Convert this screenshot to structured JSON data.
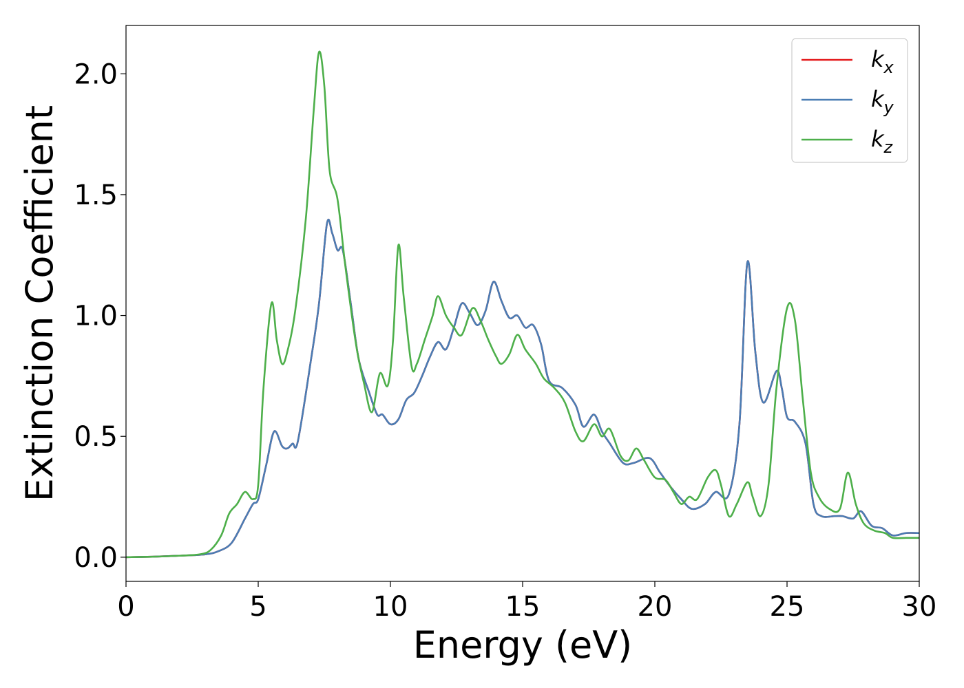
{
  "chart_data": {
    "type": "line",
    "xlabel": "Energy (eV)",
    "ylabel": "Extinction Coefficient",
    "xlim": [
      0,
      30
    ],
    "ylim": [
      -0.1,
      2.2
    ],
    "xticks": [
      "0",
      "5",
      "10",
      "15",
      "20",
      "25",
      "30"
    ],
    "yticks": [
      "0.0",
      "0.5",
      "1.0",
      "1.5",
      "2.0"
    ],
    "grid": false,
    "legend_position": "top-right",
    "series": [
      {
        "name": "k",
        "subscript": "x",
        "color": "#e41a1c",
        "points": [
          [
            0,
            0
          ],
          [
            1,
            0.002
          ],
          [
            2,
            0.006
          ],
          [
            3,
            0.012
          ],
          [
            3.5,
            0.025
          ],
          [
            4,
            0.06
          ],
          [
            4.5,
            0.16
          ],
          [
            4.8,
            0.22
          ],
          [
            5.0,
            0.24
          ],
          [
            5.3,
            0.38
          ],
          [
            5.6,
            0.52
          ],
          [
            5.9,
            0.46
          ],
          [
            6.1,
            0.45
          ],
          [
            6.3,
            0.47
          ],
          [
            6.5,
            0.48
          ],
          [
            7.0,
            0.82
          ],
          [
            7.3,
            1.05
          ],
          [
            7.6,
            1.38
          ],
          [
            7.8,
            1.34
          ],
          [
            8.0,
            1.27
          ],
          [
            8.2,
            1.27
          ],
          [
            8.5,
            1.05
          ],
          [
            8.8,
            0.82
          ],
          [
            9.2,
            0.68
          ],
          [
            9.5,
            0.59
          ],
          [
            9.7,
            0.59
          ],
          [
            10.0,
            0.55
          ],
          [
            10.3,
            0.57
          ],
          [
            10.6,
            0.65
          ],
          [
            10.9,
            0.68
          ],
          [
            11.2,
            0.75
          ],
          [
            11.5,
            0.83
          ],
          [
            11.8,
            0.89
          ],
          [
            12.1,
            0.86
          ],
          [
            12.4,
            0.95
          ],
          [
            12.7,
            1.05
          ],
          [
            13.0,
            1.01
          ],
          [
            13.3,
            0.96
          ],
          [
            13.6,
            1.02
          ],
          [
            13.9,
            1.14
          ],
          [
            14.2,
            1.06
          ],
          [
            14.5,
            0.99
          ],
          [
            14.8,
            1.0
          ],
          [
            15.1,
            0.95
          ],
          [
            15.4,
            0.96
          ],
          [
            15.7,
            0.88
          ],
          [
            16.0,
            0.73
          ],
          [
            16.5,
            0.7
          ],
          [
            17.0,
            0.63
          ],
          [
            17.3,
            0.54
          ],
          [
            17.7,
            0.59
          ],
          [
            18.0,
            0.52
          ],
          [
            18.3,
            0.47
          ],
          [
            18.8,
            0.39
          ],
          [
            19.2,
            0.39
          ],
          [
            19.8,
            0.41
          ],
          [
            20.2,
            0.35
          ],
          [
            20.6,
            0.29
          ],
          [
            21.0,
            0.24
          ],
          [
            21.4,
            0.2
          ],
          [
            21.9,
            0.22
          ],
          [
            22.3,
            0.27
          ],
          [
            22.8,
            0.26
          ],
          [
            23.2,
            0.55
          ],
          [
            23.5,
            1.22
          ],
          [
            23.8,
            0.85
          ],
          [
            24.1,
            0.64
          ],
          [
            24.6,
            0.77
          ],
          [
            24.8,
            0.7
          ],
          [
            25.0,
            0.58
          ],
          [
            25.3,
            0.56
          ],
          [
            25.7,
            0.47
          ],
          [
            26.0,
            0.22
          ],
          [
            26.3,
            0.17
          ],
          [
            26.8,
            0.17
          ],
          [
            27.1,
            0.17
          ],
          [
            27.5,
            0.16
          ],
          [
            27.8,
            0.19
          ],
          [
            28.2,
            0.13
          ],
          [
            28.6,
            0.12
          ],
          [
            29.0,
            0.09
          ],
          [
            29.5,
            0.1
          ],
          [
            30,
            0.1
          ]
        ]
      },
      {
        "name": "k",
        "subscript": "y",
        "color": "#4a7db4",
        "points": [
          [
            0,
            0
          ],
          [
            1,
            0.002
          ],
          [
            2,
            0.006
          ],
          [
            3,
            0.012
          ],
          [
            3.5,
            0.025
          ],
          [
            4,
            0.06
          ],
          [
            4.5,
            0.16
          ],
          [
            4.8,
            0.22
          ],
          [
            5.0,
            0.24
          ],
          [
            5.3,
            0.38
          ],
          [
            5.6,
            0.52
          ],
          [
            5.9,
            0.46
          ],
          [
            6.1,
            0.45
          ],
          [
            6.3,
            0.47
          ],
          [
            6.5,
            0.48
          ],
          [
            7.0,
            0.82
          ],
          [
            7.3,
            1.05
          ],
          [
            7.6,
            1.38
          ],
          [
            7.8,
            1.34
          ],
          [
            8.0,
            1.27
          ],
          [
            8.2,
            1.27
          ],
          [
            8.5,
            1.05
          ],
          [
            8.8,
            0.82
          ],
          [
            9.2,
            0.68
          ],
          [
            9.5,
            0.59
          ],
          [
            9.7,
            0.59
          ],
          [
            10.0,
            0.55
          ],
          [
            10.3,
            0.57
          ],
          [
            10.6,
            0.65
          ],
          [
            10.9,
            0.68
          ],
          [
            11.2,
            0.75
          ],
          [
            11.5,
            0.83
          ],
          [
            11.8,
            0.89
          ],
          [
            12.1,
            0.86
          ],
          [
            12.4,
            0.95
          ],
          [
            12.7,
            1.05
          ],
          [
            13.0,
            1.01
          ],
          [
            13.3,
            0.96
          ],
          [
            13.6,
            1.02
          ],
          [
            13.9,
            1.14
          ],
          [
            14.2,
            1.06
          ],
          [
            14.5,
            0.99
          ],
          [
            14.8,
            1.0
          ],
          [
            15.1,
            0.95
          ],
          [
            15.4,
            0.96
          ],
          [
            15.7,
            0.88
          ],
          [
            16.0,
            0.73
          ],
          [
            16.5,
            0.7
          ],
          [
            17.0,
            0.63
          ],
          [
            17.3,
            0.54
          ],
          [
            17.7,
            0.59
          ],
          [
            18.0,
            0.52
          ],
          [
            18.3,
            0.47
          ],
          [
            18.8,
            0.39
          ],
          [
            19.2,
            0.39
          ],
          [
            19.8,
            0.41
          ],
          [
            20.2,
            0.35
          ],
          [
            20.6,
            0.29
          ],
          [
            21.0,
            0.24
          ],
          [
            21.4,
            0.2
          ],
          [
            21.9,
            0.22
          ],
          [
            22.3,
            0.27
          ],
          [
            22.8,
            0.26
          ],
          [
            23.2,
            0.55
          ],
          [
            23.5,
            1.22
          ],
          [
            23.8,
            0.85
          ],
          [
            24.1,
            0.64
          ],
          [
            24.6,
            0.77
          ],
          [
            24.8,
            0.7
          ],
          [
            25.0,
            0.58
          ],
          [
            25.3,
            0.56
          ],
          [
            25.7,
            0.47
          ],
          [
            26.0,
            0.22
          ],
          [
            26.3,
            0.17
          ],
          [
            26.8,
            0.17
          ],
          [
            27.1,
            0.17
          ],
          [
            27.5,
            0.16
          ],
          [
            27.8,
            0.19
          ],
          [
            28.2,
            0.13
          ],
          [
            28.6,
            0.12
          ],
          [
            29.0,
            0.09
          ],
          [
            29.5,
            0.1
          ],
          [
            30,
            0.1
          ]
        ]
      },
      {
        "name": "k",
        "subscript": "z",
        "color": "#4daf4a",
        "points": [
          [
            0,
            0
          ],
          [
            1,
            0.002
          ],
          [
            2,
            0.006
          ],
          [
            2.8,
            0.012
          ],
          [
            3.2,
            0.03
          ],
          [
            3.6,
            0.09
          ],
          [
            3.9,
            0.18
          ],
          [
            4.2,
            0.22
          ],
          [
            4.5,
            0.27
          ],
          [
            4.8,
            0.24
          ],
          [
            5.0,
            0.3
          ],
          [
            5.2,
            0.7
          ],
          [
            5.5,
            1.05
          ],
          [
            5.7,
            0.9
          ],
          [
            5.9,
            0.8
          ],
          [
            6.1,
            0.85
          ],
          [
            6.4,
            1.02
          ],
          [
            6.8,
            1.4
          ],
          [
            7.1,
            1.85
          ],
          [
            7.3,
            2.09
          ],
          [
            7.5,
            1.95
          ],
          [
            7.7,
            1.6
          ],
          [
            8.0,
            1.48
          ],
          [
            8.3,
            1.2
          ],
          [
            8.7,
            0.88
          ],
          [
            9.0,
            0.72
          ],
          [
            9.3,
            0.6
          ],
          [
            9.6,
            0.76
          ],
          [
            9.9,
            0.71
          ],
          [
            10.1,
            0.9
          ],
          [
            10.3,
            1.29
          ],
          [
            10.5,
            1.08
          ],
          [
            10.8,
            0.79
          ],
          [
            11.0,
            0.8
          ],
          [
            11.3,
            0.9
          ],
          [
            11.6,
            1.0
          ],
          [
            11.8,
            1.08
          ],
          [
            12.1,
            1.0
          ],
          [
            12.4,
            0.95
          ],
          [
            12.7,
            0.92
          ],
          [
            13.1,
            1.03
          ],
          [
            13.4,
            0.98
          ],
          [
            13.7,
            0.9
          ],
          [
            14.0,
            0.83
          ],
          [
            14.2,
            0.8
          ],
          [
            14.5,
            0.84
          ],
          [
            14.8,
            0.92
          ],
          [
            15.1,
            0.86
          ],
          [
            15.5,
            0.8
          ],
          [
            15.8,
            0.74
          ],
          [
            16.2,
            0.7
          ],
          [
            16.6,
            0.64
          ],
          [
            17.0,
            0.52
          ],
          [
            17.3,
            0.48
          ],
          [
            17.7,
            0.55
          ],
          [
            18.0,
            0.5
          ],
          [
            18.3,
            0.53
          ],
          [
            18.7,
            0.42
          ],
          [
            19.0,
            0.4
          ],
          [
            19.3,
            0.45
          ],
          [
            19.6,
            0.4
          ],
          [
            20.0,
            0.33
          ],
          [
            20.4,
            0.32
          ],
          [
            20.7,
            0.27
          ],
          [
            21.0,
            0.22
          ],
          [
            21.3,
            0.25
          ],
          [
            21.6,
            0.24
          ],
          [
            22.0,
            0.33
          ],
          [
            22.3,
            0.36
          ],
          [
            22.5,
            0.3
          ],
          [
            22.8,
            0.17
          ],
          [
            23.1,
            0.22
          ],
          [
            23.5,
            0.31
          ],
          [
            23.7,
            0.25
          ],
          [
            24.0,
            0.17
          ],
          [
            24.3,
            0.3
          ],
          [
            24.6,
            0.7
          ],
          [
            25.0,
            1.03
          ],
          [
            25.3,
            0.98
          ],
          [
            25.6,
            0.65
          ],
          [
            25.9,
            0.35
          ],
          [
            26.2,
            0.25
          ],
          [
            26.6,
            0.2
          ],
          [
            27.0,
            0.2
          ],
          [
            27.3,
            0.35
          ],
          [
            27.6,
            0.22
          ],
          [
            27.9,
            0.14
          ],
          [
            28.3,
            0.11
          ],
          [
            28.7,
            0.1
          ],
          [
            29.0,
            0.08
          ],
          [
            29.5,
            0.08
          ],
          [
            30,
            0.08
          ]
        ]
      }
    ]
  }
}
